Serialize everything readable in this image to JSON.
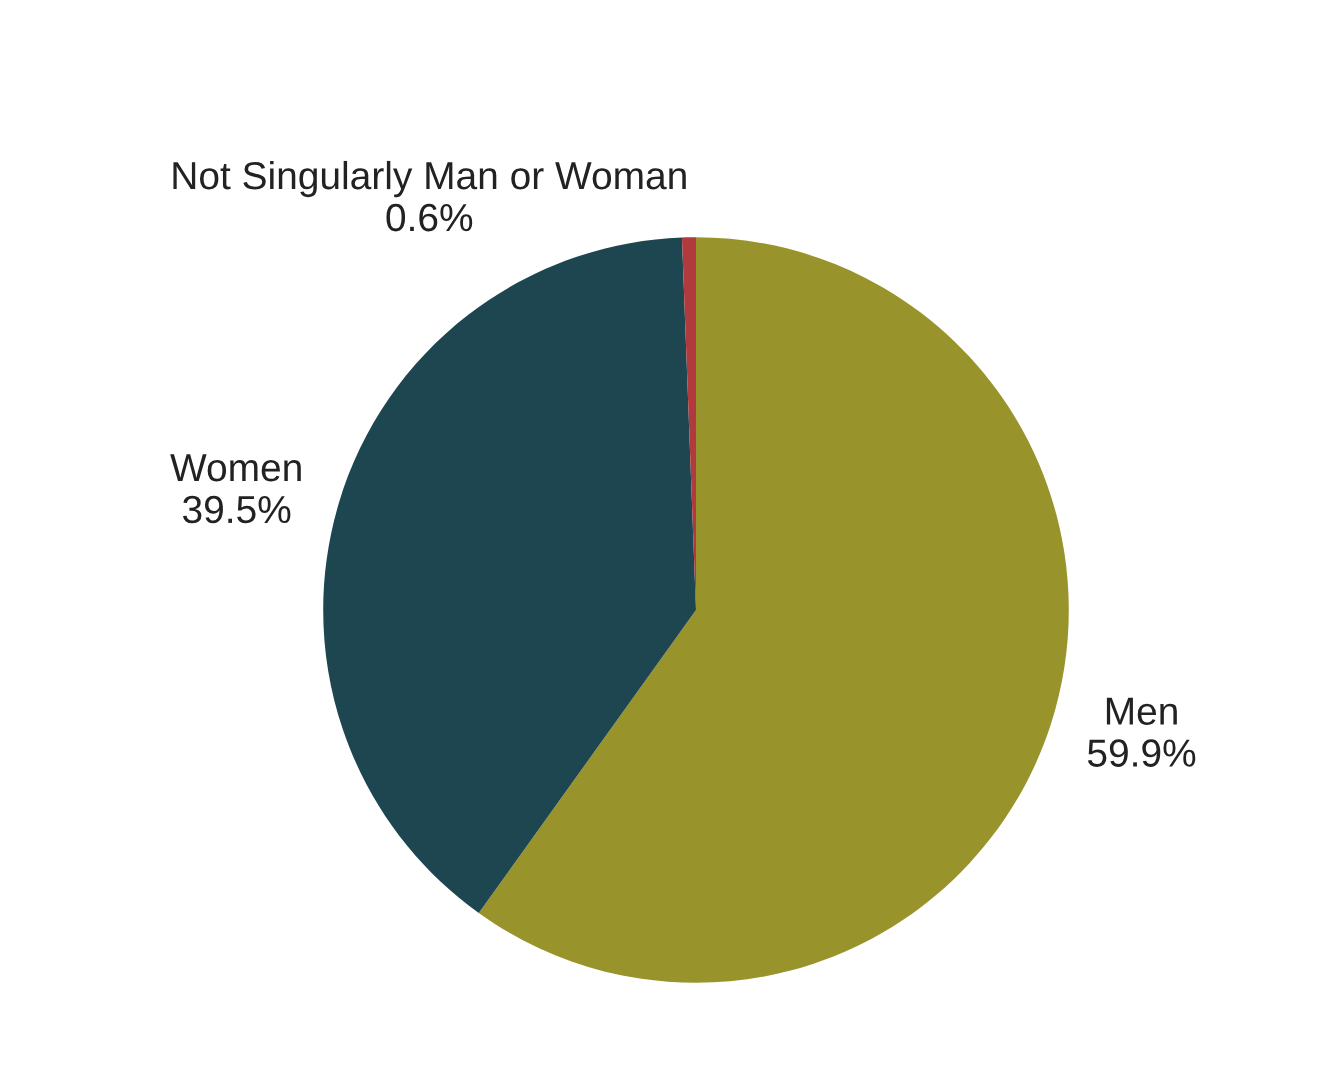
{
  "chart_data": {
    "type": "pie",
    "categories": [
      "Men",
      "Women",
      "Not Singularly Man or Woman"
    ],
    "values": [
      59.9,
      39.5,
      0.6
    ],
    "value_labels": [
      "59.9%",
      "39.5%",
      "0.6%"
    ],
    "colors": [
      "#99932c",
      "#1e4651",
      "#b03a3e"
    ],
    "legend": false
  }
}
